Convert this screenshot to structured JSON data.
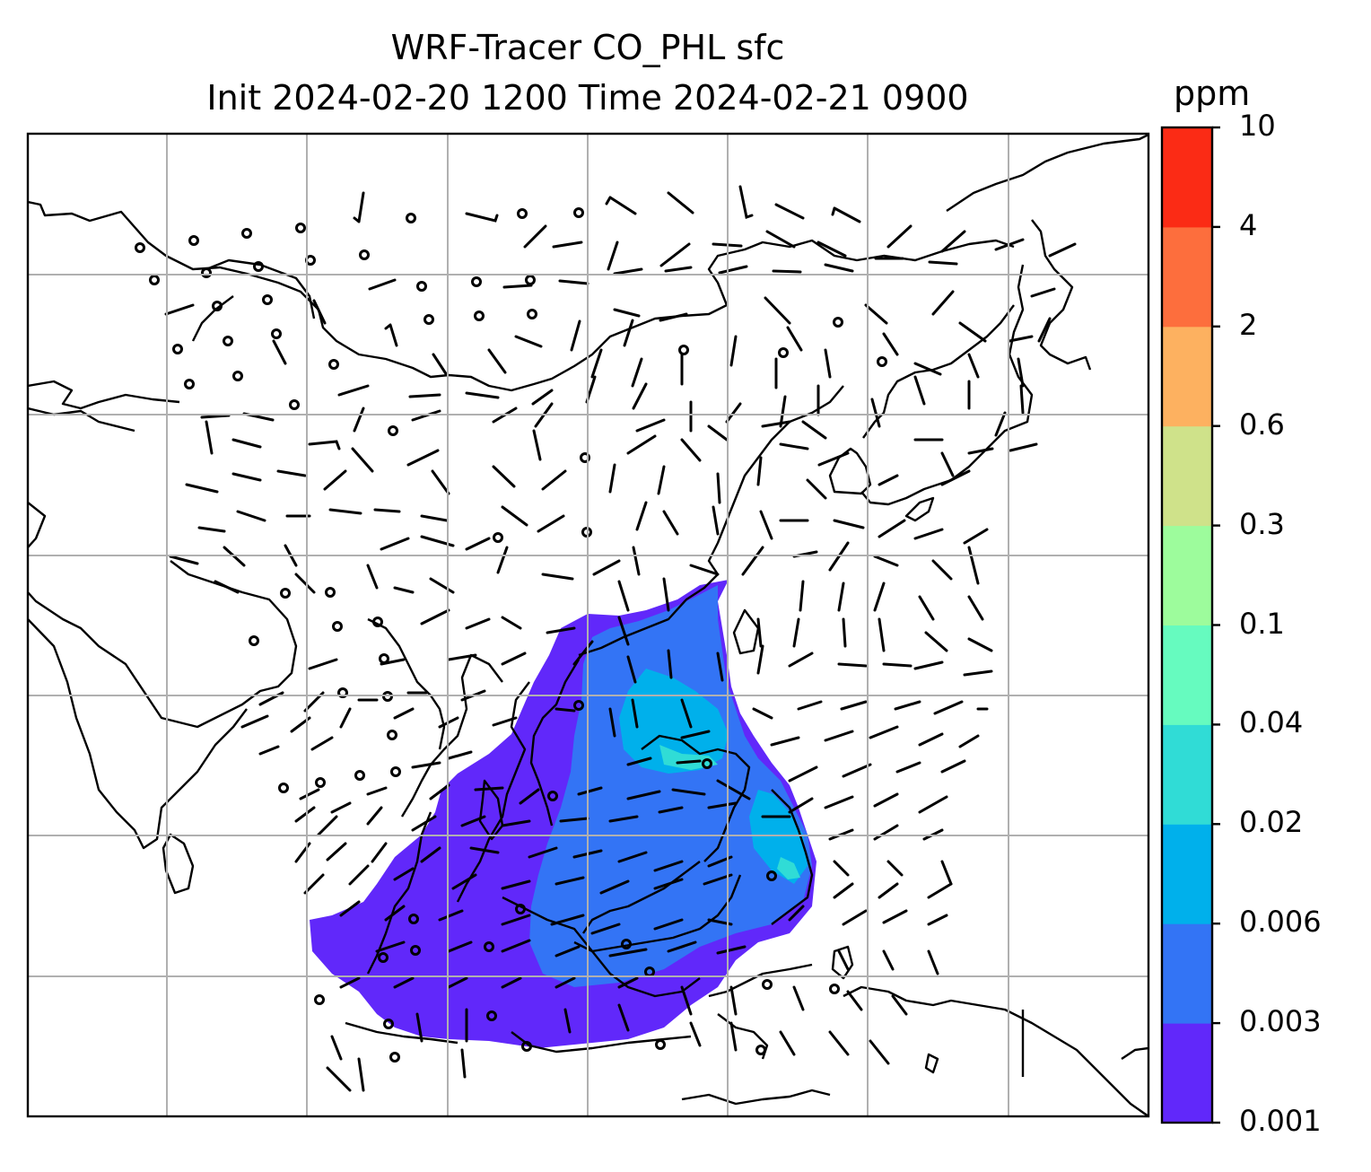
{
  "title": {
    "line1": "WRF-Tracer CO_PHL sfc",
    "line2": "Init 2024-02-20 1200 Time 2024-02-21 0900"
  },
  "colorbar": {
    "unit": "ppm",
    "levels": [
      "0.001",
      "0.003",
      "0.006",
      "0.02",
      "0.04",
      "0.1",
      "0.3",
      "0.6",
      "2",
      "4",
      "10"
    ],
    "colors": [
      "#6128fa",
      "#3374f5",
      "#00b0eb",
      "#30dcd6",
      "#66fbbf",
      "#9dfc9c",
      "#cfe28a",
      "#fdb160",
      "#fd6e3d",
      "#fb2b15"
    ]
  },
  "map": {
    "grid_color": "#b0b0b0",
    "coast_color": "#000000",
    "plume_levels_drawn": [
      "0.001",
      "0.003",
      "0.006",
      "0.02"
    ]
  }
}
